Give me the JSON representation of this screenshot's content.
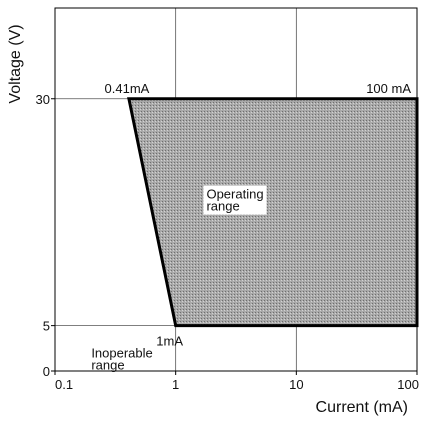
{
  "chart_data": {
    "type": "area",
    "xlabel": "Current (mA)",
    "ylabel": "Voltage (V)",
    "x_scale": "log",
    "xlim": [
      0.1,
      100
    ],
    "ylim": [
      0,
      40
    ],
    "x_ticks": [
      {
        "value": 0.1,
        "label": "0.1"
      },
      {
        "value": 1,
        "label": "1"
      },
      {
        "value": 10,
        "label": "10"
      },
      {
        "value": 100,
        "label": "100"
      }
    ],
    "y_ticks": [
      {
        "value": 0,
        "label": "0"
      },
      {
        "value": 5,
        "label": "5"
      },
      {
        "value": 30,
        "label": "30"
      }
    ],
    "grid": true,
    "region": {
      "label": "Operating range",
      "fill_color": "#9a9a9a",
      "boundary": [
        {
          "x": 0.41,
          "y": 30
        },
        {
          "x": 100,
          "y": 30
        },
        {
          "x": 100,
          "y": 5
        },
        {
          "x": 1,
          "y": 5
        }
      ]
    },
    "annotations": [
      {
        "text": "0.41mA",
        "x": 0.41,
        "y": 30
      },
      {
        "text": "100 mA",
        "x": 100,
        "y": 30
      },
      {
        "text": "1mA",
        "x": 1,
        "y": 5
      },
      {
        "text": "Operating\nrange",
        "x": 1.8,
        "y": 19
      },
      {
        "text": "Inoperable\nrange",
        "x": 0.2,
        "y": 1.5
      }
    ]
  }
}
